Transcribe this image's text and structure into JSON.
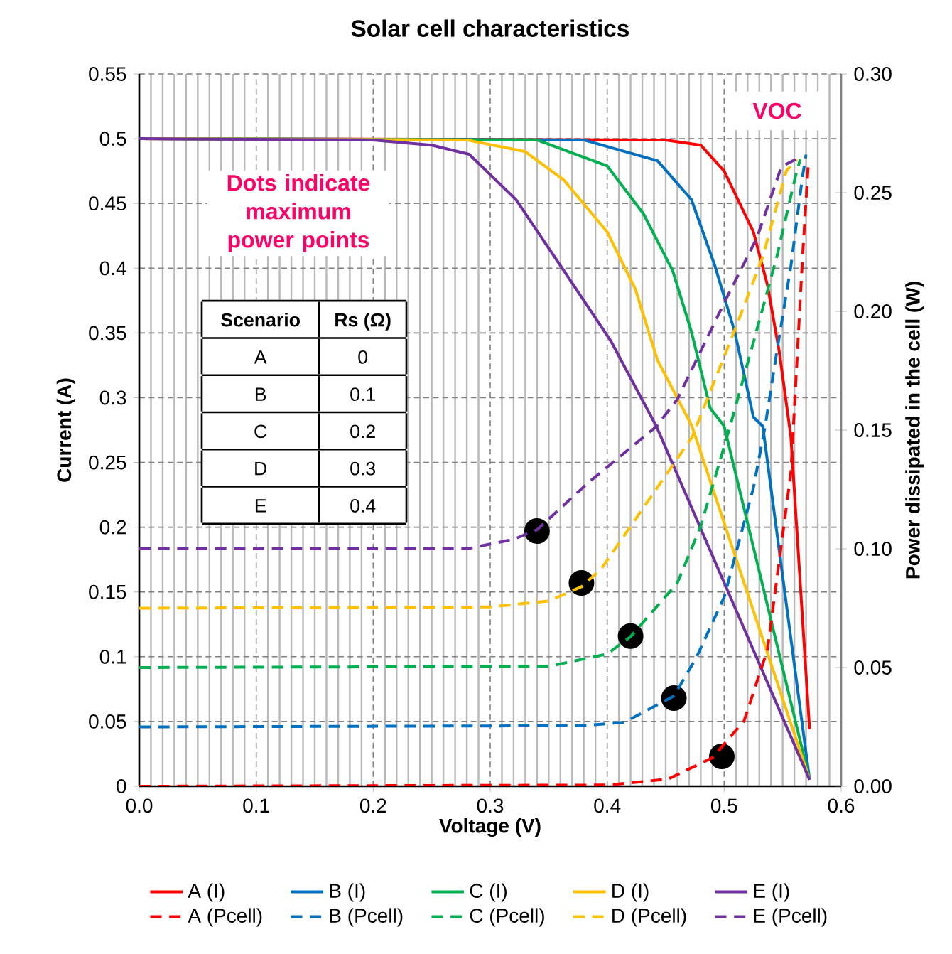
{
  "chart_data": {
    "type": "line",
    "title": "Solar cell characteristics",
    "xlabel": "Voltage (V)",
    "ylabel": "Current (A)",
    "y2label": "Power dissipated in the cell (W)",
    "xlim": [
      0,
      0.6
    ],
    "ylim": [
      0,
      0.55
    ],
    "y2lim": [
      0,
      0.3
    ],
    "xticks": [
      {
        "value": 0,
        "label": "0.0"
      },
      {
        "value": 0.1,
        "label": "0.1"
      },
      {
        "value": 0.2,
        "label": "0.2"
      },
      {
        "value": 0.3,
        "label": "0.3"
      },
      {
        "value": 0.4,
        "label": "0.4"
      },
      {
        "value": 0.5,
        "label": "0.5"
      },
      {
        "value": 0.6,
        "label": "0.6"
      }
    ],
    "yticks": [
      0,
      0.05,
      0.1,
      0.15,
      0.2,
      0.25,
      0.3,
      0.35,
      0.4,
      0.45,
      0.5,
      0.55
    ],
    "y2ticks": [
      {
        "value": 0,
        "label": "0.00"
      },
      {
        "value": 0.05,
        "label": "0.05"
      },
      {
        "value": 0.1,
        "label": "0.10"
      },
      {
        "value": 0.15,
        "label": "0.15"
      },
      {
        "value": 0.2,
        "label": "0.20"
      },
      {
        "value": 0.25,
        "label": "0.25"
      },
      {
        "value": 0.3,
        "label": "0.30"
      }
    ],
    "grid": true,
    "legend": "bottom",
    "series": [
      {
        "name": "A (I)",
        "color": "#ff0000",
        "x": [
          0,
          0.45,
          0.48,
          0.5,
          0.525,
          0.537,
          0.547,
          0.557,
          0.573
        ],
        "values": [
          0.5,
          0.499,
          0.495,
          0.475,
          0.428,
          0.387,
          0.336,
          0.27,
          0.044
        ]
      },
      {
        "name": "B (I)",
        "color": "#0070c0",
        "x": [
          0,
          0.38,
          0.443,
          0.472,
          0.492,
          0.509,
          0.525,
          0.533,
          0.573
        ],
        "values": [
          0.5,
          0.499,
          0.483,
          0.453,
          0.402,
          0.351,
          0.285,
          0.278,
          0.005
        ]
      },
      {
        "name": "C (I)",
        "color": "#00b050",
        "x": [
          0,
          0.34,
          0.4,
          0.431,
          0.456,
          0.472,
          0.488,
          0.5,
          0.573
        ],
        "values": [
          0.5,
          0.499,
          0.479,
          0.442,
          0.398,
          0.351,
          0.292,
          0.278,
          0.005
        ]
      },
      {
        "name": "D (I)",
        "color": "#ffc000",
        "x": [
          0,
          0.28,
          0.33,
          0.363,
          0.4,
          0.424,
          0.443,
          0.4725,
          0.573
        ],
        "values": [
          0.5,
          0.499,
          0.49,
          0.468,
          0.428,
          0.384,
          0.329,
          0.278,
          0.005
        ]
      },
      {
        "name": "E (I)",
        "color": "#7030a0",
        "x": [
          0,
          0.2,
          0.25,
          0.282,
          0.322,
          0.363,
          0.403,
          0.442,
          0.573
        ],
        "values": [
          0.5,
          0.499,
          0.495,
          0.488,
          0.453,
          0.398,
          0.344,
          0.278,
          0.005
        ]
      },
      {
        "name": "A (Pcell)",
        "color": "#ff0000",
        "line_style": "dashed",
        "axis": "y2",
        "x": [
          0,
          0.4,
          0.452,
          0.49,
          0.517,
          0.537,
          0.557,
          0.561,
          0.567,
          0.572
        ],
        "values": [
          0,
          0.0005,
          0.003,
          0.012,
          0.0275,
          0.0575,
          0.132,
          0.168,
          0.223,
          0.263
        ]
      },
      {
        "name": "B (Pcell)",
        "color": "#0070c0",
        "line_style": "dashed",
        "axis": "y2",
        "x": [
          0,
          0.38,
          0.415,
          0.457,
          0.476,
          0.5,
          0.525,
          0.535,
          0.545,
          0.557,
          0.567,
          0.57
        ],
        "values": [
          0.025,
          0.0255,
          0.027,
          0.038,
          0.054,
          0.0796,
          0.1257,
          0.1515,
          0.183,
          0.219,
          0.257,
          0.266
        ]
      },
      {
        "name": "C (Pcell)",
        "color": "#00b050",
        "line_style": "dashed",
        "axis": "y2",
        "x": [
          0,
          0.35,
          0.4,
          0.42,
          0.46,
          0.48,
          0.505,
          0.525,
          0.545,
          0.561,
          0.565
        ],
        "values": [
          0.05,
          0.0505,
          0.0557,
          0.063,
          0.0856,
          0.1096,
          0.1515,
          0.187,
          0.223,
          0.257,
          0.264
        ]
      },
      {
        "name": "D (Pcell)",
        "color": "#ffc000",
        "line_style": "dashed",
        "axis": "y2",
        "x": [
          0,
          0.3,
          0.35,
          0.378,
          0.395,
          0.4725,
          0.509,
          0.533,
          0.553,
          0.562
        ],
        "values": [
          0.075,
          0.0755,
          0.078,
          0.084,
          0.0916,
          0.147,
          0.192,
          0.223,
          0.259,
          0.264
        ]
      },
      {
        "name": "E (Pcell)",
        "color": "#7030a0",
        "line_style": "dashed",
        "axis": "y2",
        "x": [
          0,
          0.28,
          0.32,
          0.34,
          0.383,
          0.442,
          0.46,
          0.5,
          0.528,
          0.549,
          0.561
        ],
        "values": [
          0.1,
          0.1,
          0.104,
          0.108,
          0.1275,
          0.1515,
          0.163,
          0.2036,
          0.231,
          0.261,
          0.264
        ]
      },
      {
        "type": "scatter",
        "color": "#000000",
        "marker": "circle",
        "x": [
          0.34,
          0.378,
          0.42,
          0.457,
          0.498
        ],
        "values": [
          0.197,
          0.157,
          0.116,
          0.068,
          0.023
        ]
      }
    ],
    "annotations": [
      "Dots indicate maximum power points",
      "VOC",
      "Scenario",
      "Rs (Ω)",
      "A",
      "0",
      "B",
      "0.1",
      "C",
      "0.2",
      "D",
      "0.3",
      "E",
      "0.4"
    ]
  }
}
